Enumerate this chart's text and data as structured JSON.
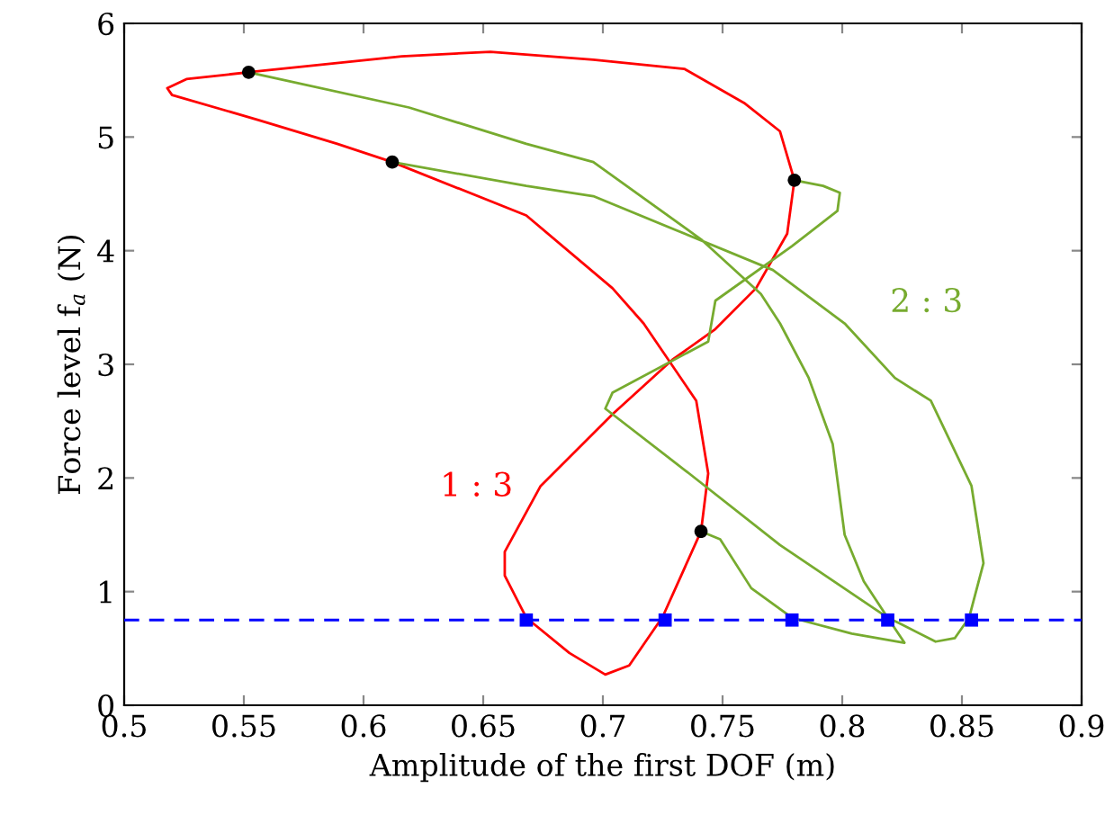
{
  "chart_data": {
    "type": "line",
    "xlabel": "Amplitude of the first DOF (m)",
    "ylabel": "Force level f$_{a}$ (N)",
    "xlim": [
      0.5,
      0.9
    ],
    "ylim": [
      0,
      6
    ],
    "xticks": [
      0.5,
      0.55,
      0.6,
      0.65,
      0.7,
      0.75,
      0.8,
      0.85,
      0.9
    ],
    "yticks": [
      0,
      1,
      2,
      3,
      4,
      5,
      6
    ],
    "grid": false,
    "legend": false,
    "series": [
      {
        "name": "1 : 3",
        "color": "#ff0000",
        "marker": "none",
        "line_style": "solid",
        "x": [
          0.552,
          0.526,
          0.518,
          0.52,
          0.556,
          0.589,
          0.612,
          null,
          0.612,
          0.668,
          0.704,
          0.717,
          0.739,
          0.744,
          0.741,
          null,
          0.741,
          0.725,
          0.711,
          0.701,
          0.686,
          0.668,
          0.659,
          0.659,
          0.674,
          0.704,
          0.729,
          0.747,
          0.764,
          0.777,
          0.78,
          null,
          0.78,
          0.774,
          0.759,
          0.734,
          0.696,
          0.653,
          0.616,
          0.552
        ],
        "values": [
          5.57,
          5.51,
          5.43,
          5.37,
          5.15,
          4.94,
          4.78,
          null,
          4.78,
          4.31,
          3.67,
          3.36,
          2.68,
          2.04,
          1.53,
          null,
          1.53,
          0.78,
          0.35,
          0.27,
          0.46,
          0.77,
          1.14,
          1.35,
          1.93,
          2.56,
          3.04,
          3.31,
          3.67,
          4.15,
          4.62,
          null,
          4.62,
          5.05,
          5.3,
          5.6,
          5.68,
          5.75,
          5.71,
          5.57
        ]
      },
      {
        "name": "2 : 3",
        "color": "#77ab2f",
        "marker": "none",
        "line_style": "solid",
        "x": [
          0.552,
          0.619,
          0.668,
          0.696,
          0.741,
          0.766,
          0.774,
          0.786,
          0.796,
          0.801,
          0.809,
          0.819,
          0.826,
          0.804,
          0.779,
          0.762,
          0.749,
          0.741,
          null,
          0.612,
          0.668,
          0.696,
          0.771,
          0.801,
          0.822,
          0.837,
          0.854,
          0.859,
          0.853,
          0.847,
          0.839,
          0.824,
          0.819,
          0.774,
          0.736,
          0.701,
          0.704,
          0.744,
          0.747,
          0.779,
          0.798,
          0.799,
          0.792,
          0.78
        ],
        "values": [
          5.57,
          5.26,
          4.94,
          4.78,
          4.1,
          3.62,
          3.36,
          2.88,
          2.3,
          1.5,
          1.09,
          0.77,
          0.55,
          0.63,
          0.77,
          1.03,
          1.46,
          1.53,
          null,
          4.78,
          4.57,
          4.48,
          3.83,
          3.36,
          2.88,
          2.68,
          1.93,
          1.25,
          0.77,
          0.59,
          0.56,
          0.72,
          0.77,
          1.41,
          2.04,
          2.61,
          2.75,
          3.2,
          3.56,
          4.04,
          4.35,
          4.51,
          4.57,
          4.62
        ]
      },
      {
        "type": "scatter",
        "color": "#000000",
        "marker": "circle",
        "x": [
          0.552,
          0.612,
          0.78,
          0.741
        ],
        "values": [
          5.57,
          4.78,
          4.62,
          1.53
        ]
      },
      {
        "type": "scatter",
        "color": "#0000ff",
        "marker": "square",
        "x": [
          0.668,
          0.726,
          0.779,
          0.819,
          0.854
        ],
        "values": [
          0.75,
          0.75,
          0.75,
          0.75,
          0.75
        ]
      }
    ],
    "ref_lines": [
      {
        "axis": "y",
        "value": 0.75,
        "color": "#0000ff",
        "line_style": "dashed"
      }
    ]
  }
}
